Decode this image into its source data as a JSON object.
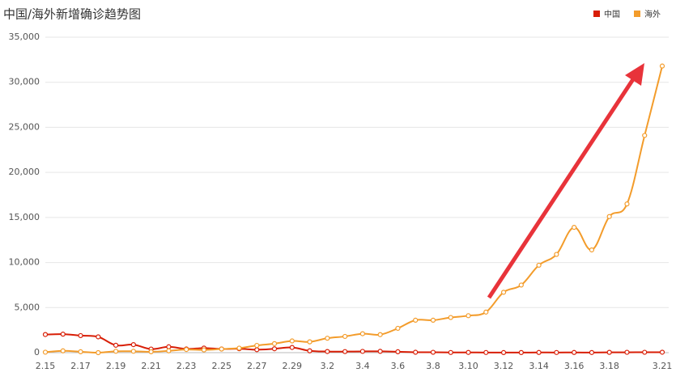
{
  "chart_data": {
    "type": "line",
    "title": "中国/海外新增确诊趋势图",
    "categories": [
      "2.15",
      null,
      "2.17",
      null,
      "2.19",
      null,
      "2.21",
      null,
      "2.23",
      null,
      "2.25",
      null,
      "2.27",
      null,
      "2.29",
      null,
      "3.2",
      null,
      "3.4",
      null,
      "3.6",
      null,
      "3.8",
      null,
      "3.10",
      null,
      "3.12",
      null,
      "3.14",
      null,
      "3.16",
      null,
      "3.18",
      null,
      null,
      "3.21"
    ],
    "series": [
      {
        "name": "中国",
        "color": "#d81e06",
        "values": [
          2009,
          2051,
          1891,
          1751,
          820,
          889,
          397,
          648,
          409,
          508,
          406,
          433,
          327,
          427,
          573,
          202,
          125,
          119,
          139,
          143,
          99,
          44,
          40,
          19,
          24,
          15,
          8,
          11,
          20,
          16,
          21,
          13,
          34,
          39,
          41,
          46
        ]
      },
      {
        "name": "海外",
        "color": "#f39c2b",
        "values": [
          50,
          200,
          100,
          0,
          150,
          150,
          100,
          200,
          350,
          300,
          400,
          500,
          800,
          1000,
          1300,
          1200,
          1600,
          1800,
          2100,
          2000,
          2700,
          3600,
          3600,
          3900,
          4100,
          4500,
          6700,
          7500,
          9700,
          10900,
          13900,
          11400,
          15100,
          16500,
          24100,
          31800
        ]
      }
    ],
    "ylim": [
      0,
      35000
    ],
    "yticks": [
      0,
      {
        "value": 5000,
        "label": "5,000"
      },
      {
        "value": 10000,
        "label": "10,000"
      },
      {
        "value": 15000,
        "label": "15,000"
      },
      {
        "value": 20000,
        "label": "20,000"
      },
      {
        "value": 25000,
        "label": "25,000"
      },
      {
        "value": 30000,
        "label": "30,000"
      },
      {
        "value": 35000,
        "label": "35,000"
      }
    ],
    "grid": true,
    "legend": "top-right"
  }
}
